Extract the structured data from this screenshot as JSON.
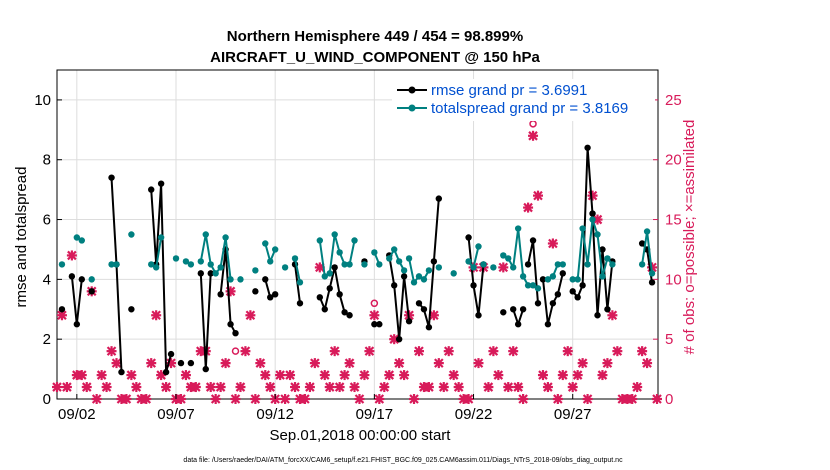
{
  "chart_data": {
    "type": "line",
    "title": "Northern Hemisphere 449 / 454 = 98.899%",
    "subtitle": "AIRCRAFT_U_WIND_COMPONENT @ 150 hPa",
    "xlabel": "Sep.01,2018 00:00:00 start",
    "ylabel": "rmse and totalspread",
    "y2label": "# of obs: o=possible; ×=assimilated",
    "footnote": "data file: /Users/raeder/DAI/ATM_forcXX/CAM6_setup/f.e21.FHIST_BGC.f09_025.CAM6assim.011/Diags_NTrS_2018-09/obs_diag_output.nc",
    "xlim": [
      1,
      31.3
    ],
    "ylim": [
      0,
      11
    ],
    "y2lim": [
      0,
      27.5
    ],
    "x_ticks": [
      {
        "x": 2,
        "label": "09/02"
      },
      {
        "x": 7,
        "label": "09/07"
      },
      {
        "x": 12,
        "label": "09/12"
      },
      {
        "x": 17,
        "label": "09/17"
      },
      {
        "x": 22,
        "label": "09/22"
      },
      {
        "x": 27,
        "label": "09/27"
      }
    ],
    "y_ticks": [
      0,
      2,
      4,
      6,
      8,
      10
    ],
    "y2_ticks": [
      0,
      5,
      10,
      15,
      20,
      25
    ],
    "legend": [
      "rmse grand pr = 3.6991",
      "totalspread grand pr = 3.8169"
    ],
    "colors": {
      "rmse": "#000000",
      "spread": "#008080",
      "obs": "#d81b5a",
      "legend_text": "#0050d0",
      "grid": "#dddddd"
    },
    "series": [
      {
        "name": "rmse",
        "points": [
          [
            [
              1.25,
              3.0
            ]
          ],
          [
            [
              1.75,
              4.1
            ],
            [
              2.0,
              2.5
            ],
            [
              2.25,
              4.0
            ]
          ],
          [
            [
              2.75,
              3.6
            ]
          ],
          [
            [
              3.75,
              7.4
            ],
            [
              4.0,
              4.5
            ],
            [
              4.25,
              0.9
            ]
          ],
          [
            [
              4.75,
              3.0
            ]
          ],
          [
            [
              5.75,
              7.0
            ],
            [
              6.0,
              4.5
            ],
            [
              6.25,
              7.2
            ],
            [
              6.5,
              0.9
            ],
            [
              6.75,
              1.5
            ]
          ],
          [
            [
              7.25,
              1.2
            ]
          ],
          [
            [
              7.75,
              1.2
            ]
          ],
          [
            [
              8.25,
              4.2
            ],
            [
              8.5,
              1.0
            ],
            [
              8.75,
              4.2
            ]
          ],
          [
            [
              9.25,
              3.5
            ],
            [
              9.5,
              5.0
            ],
            [
              9.75,
              2.5
            ],
            [
              10.0,
              2.2
            ]
          ],
          [
            [
              11.0,
              3.6
            ]
          ],
          [
            [
              11.5,
              4.0
            ],
            [
              11.75,
              3.4
            ],
            [
              12.0,
              3.5
            ]
          ],
          [
            [
              13.0,
              4.5
            ],
            [
              13.25,
              3.2
            ]
          ],
          [
            [
              14.25,
              3.4
            ],
            [
              14.5,
              3.0
            ],
            [
              14.75,
              3.7
            ],
            [
              15.0,
              4.4
            ],
            [
              15.25,
              3.5
            ],
            [
              15.5,
              2.9
            ],
            [
              15.75,
              2.8
            ]
          ],
          [
            [
              16.5,
              4.6
            ]
          ],
          [
            [
              17.0,
              2.5
            ],
            [
              17.25,
              2.5
            ]
          ],
          [
            [
              17.75,
              4.8
            ],
            [
              18.0,
              3.8
            ],
            [
              18.25,
              2.0
            ],
            [
              18.5,
              4.1
            ],
            [
              18.75,
              2.6
            ]
          ],
          [
            [
              19.25,
              3.2
            ],
            [
              19.5,
              3.0
            ],
            [
              19.75,
              2.4
            ],
            [
              20.0,
              4.6
            ],
            [
              20.25,
              6.7
            ]
          ],
          [
            [
              21.75,
              5.4
            ],
            [
              22.0,
              3.8
            ],
            [
              22.25,
              2.8
            ],
            [
              22.5,
              4.5
            ]
          ],
          [
            [
              23.5,
              2.9
            ]
          ],
          [
            [
              24.0,
              3.0
            ],
            [
              24.25,
              2.5
            ],
            [
              24.5,
              3.0
            ]
          ],
          [
            [
              24.75,
              4.5
            ],
            [
              25.0,
              5.3
            ],
            [
              25.25,
              3.2
            ]
          ],
          [
            [
              25.5,
              4.0
            ],
            [
              25.75,
              2.5
            ],
            [
              26.0,
              3.2
            ],
            [
              26.25,
              3.5
            ],
            [
              26.5,
              4.2
            ]
          ],
          [
            [
              27.0,
              3.6
            ],
            [
              27.25,
              3.4
            ],
            [
              27.5,
              3.8
            ],
            [
              27.75,
              8.4
            ],
            [
              28.0,
              6.2
            ],
            [
              28.25,
              2.8
            ],
            [
              28.5,
              5.0
            ],
            [
              28.75,
              3.0
            ],
            [
              29.0,
              4.6
            ]
          ],
          [
            [
              30.5,
              5.2
            ],
            [
              30.75,
              5.0
            ],
            [
              31.0,
              3.9
            ]
          ]
        ]
      },
      {
        "name": "totalspread",
        "points": [
          [
            [
              1.25,
              4.5
            ]
          ],
          [
            [
              2.0,
              5.4
            ],
            [
              2.25,
              5.3
            ]
          ],
          [
            [
              2.75,
              4.0
            ]
          ],
          [
            [
              3.75,
              4.5
            ],
            [
              4.0,
              4.5
            ]
          ],
          [
            [
              4.75,
              5.5
            ]
          ],
          [
            [
              5.75,
              4.5
            ],
            [
              6.0,
              4.4
            ],
            [
              6.25,
              5.4
            ]
          ],
          [
            [
              7.0,
              4.7
            ]
          ],
          [
            [
              7.5,
              4.6
            ],
            [
              7.75,
              4.5
            ]
          ],
          [
            [
              8.25,
              4.6
            ],
            [
              8.5,
              5.5
            ],
            [
              8.75,
              4.5
            ],
            [
              9.0,
              4.2
            ],
            [
              9.25,
              4.4
            ],
            [
              9.5,
              5.4
            ],
            [
              9.75,
              4.0
            ]
          ],
          [
            [
              10.25,
              4.0
            ]
          ],
          [
            [
              11.0,
              4.3
            ]
          ],
          [
            [
              11.5,
              5.2
            ],
            [
              11.75,
              4.6
            ],
            [
              12.0,
              5.0
            ]
          ],
          [
            [
              12.5,
              4.4
            ]
          ],
          [
            [
              13.0,
              4.7
            ],
            [
              13.25,
              3.9
            ]
          ],
          [
            [
              14.25,
              5.3
            ],
            [
              14.5,
              4.1
            ],
            [
              14.75,
              4.2
            ],
            [
              15.0,
              5.5
            ],
            [
              15.25,
              4.9
            ],
            [
              15.5,
              4.5
            ],
            [
              15.75,
              4.5
            ],
            [
              16.0,
              5.3
            ]
          ],
          [
            [
              16.5,
              4.5
            ]
          ],
          [
            [
              17.0,
              4.9
            ],
            [
              17.25,
              4.5
            ]
          ],
          [
            [
              17.75,
              4.7
            ],
            [
              18.0,
              5.0
            ],
            [
              18.25,
              4.6
            ],
            [
              18.5,
              4.3
            ]
          ],
          [
            [
              18.75,
              4.7
            ],
            [
              19.0,
              3.9
            ],
            [
              19.25,
              4.1
            ],
            [
              19.5,
              4.0
            ],
            [
              19.75,
              4.3
            ]
          ],
          [
            [
              20.25,
              4.4
            ]
          ],
          [
            [
              21.0,
              4.2
            ]
          ],
          [
            [
              21.75,
              4.6
            ],
            [
              22.0,
              4.4
            ],
            [
              22.25,
              5.1
            ]
          ],
          [
            [
              22.5,
              4.5
            ]
          ],
          [
            [
              23.0,
              4.4
            ]
          ],
          [
            [
              23.5,
              4.8
            ],
            [
              23.75,
              4.7
            ],
            [
              24.0,
              4.4
            ],
            [
              24.25,
              5.7
            ],
            [
              24.5,
              4.1
            ],
            [
              24.75,
              3.8
            ],
            [
              25.0,
              3.8
            ],
            [
              25.25,
              3.7
            ]
          ],
          [
            [
              25.75,
              4.0
            ],
            [
              26.0,
              4.1
            ],
            [
              26.25,
              4.5
            ],
            [
              26.5,
              4.5
            ]
          ],
          [
            [
              27.0,
              4.0
            ],
            [
              27.25,
              4.0
            ],
            [
              27.5,
              5.7
            ],
            [
              27.75,
              4.5
            ],
            [
              28.0,
              6.0
            ],
            [
              28.25,
              5.5
            ],
            [
              28.5,
              4.1
            ],
            [
              28.75,
              4.7
            ],
            [
              29.0,
              4.5
            ]
          ],
          [
            [
              30.5,
              4.5
            ],
            [
              30.75,
              5.6
            ],
            [
              31.0,
              4.2
            ]
          ]
        ]
      }
    ],
    "obs_assimilated": [
      [
        1.0,
        1
      ],
      [
        1.25,
        7
      ],
      [
        1.5,
        1
      ],
      [
        1.75,
        12
      ],
      [
        2.0,
        2
      ],
      [
        2.25,
        2
      ],
      [
        2.5,
        1
      ],
      [
        2.75,
        9
      ],
      [
        3.0,
        0
      ],
      [
        3.25,
        2
      ],
      [
        3.5,
        1
      ],
      [
        3.75,
        4
      ],
      [
        4.0,
        3
      ],
      [
        4.25,
        0
      ],
      [
        4.5,
        0
      ],
      [
        4.75,
        2
      ],
      [
        5.0,
        1
      ],
      [
        5.25,
        0
      ],
      [
        5.5,
        0
      ],
      [
        5.75,
        3
      ],
      [
        6.0,
        7
      ],
      [
        6.25,
        2
      ],
      [
        6.5,
        1
      ],
      [
        6.75,
        3
      ],
      [
        7.0,
        0
      ],
      [
        7.25,
        0
      ],
      [
        7.5,
        2
      ],
      [
        7.75,
        1
      ],
      [
        8.0,
        1
      ],
      [
        8.25,
        4
      ],
      [
        8.5,
        4
      ],
      [
        8.75,
        1
      ],
      [
        9.0,
        0
      ],
      [
        9.25,
        1
      ],
      [
        9.5,
        3
      ],
      [
        9.75,
        9
      ],
      [
        10.0,
        0
      ],
      [
        10.25,
        1
      ],
      [
        10.5,
        4
      ],
      [
        10.75,
        7
      ],
      [
        11.0,
        0
      ],
      [
        11.25,
        3
      ],
      [
        11.5,
        2
      ],
      [
        11.75,
        1
      ],
      [
        12.0,
        0
      ],
      [
        12.25,
        2
      ],
      [
        12.5,
        0
      ],
      [
        12.75,
        2
      ],
      [
        13.0,
        1
      ],
      [
        13.25,
        0
      ],
      [
        13.5,
        0
      ],
      [
        13.75,
        1
      ],
      [
        14.0,
        3
      ],
      [
        14.25,
        11
      ],
      [
        14.5,
        2
      ],
      [
        14.75,
        1
      ],
      [
        15.0,
        4
      ],
      [
        15.25,
        1
      ],
      [
        15.5,
        2
      ],
      [
        15.75,
        3
      ],
      [
        16.0,
        1
      ],
      [
        16.25,
        0
      ],
      [
        16.5,
        2
      ],
      [
        16.75,
        4
      ],
      [
        17.0,
        7
      ],
      [
        17.25,
        0
      ],
      [
        17.5,
        1
      ],
      [
        17.75,
        2
      ],
      [
        18.0,
        5
      ],
      [
        18.25,
        3
      ],
      [
        18.5,
        2
      ],
      [
        18.75,
        7
      ],
      [
        19.0,
        0
      ],
      [
        19.25,
        4
      ],
      [
        19.5,
        1
      ],
      [
        19.75,
        1
      ],
      [
        20.0,
        7
      ],
      [
        20.25,
        3
      ],
      [
        20.5,
        1
      ],
      [
        20.75,
        4
      ],
      [
        21.0,
        2
      ],
      [
        21.25,
        1
      ],
      [
        21.5,
        0
      ],
      [
        21.75,
        0
      ],
      [
        22.0,
        11
      ],
      [
        22.25,
        3
      ],
      [
        22.5,
        11
      ],
      [
        22.75,
        1
      ],
      [
        23.0,
        4
      ],
      [
        23.25,
        2
      ],
      [
        23.5,
        11
      ],
      [
        23.75,
        1
      ],
      [
        24.0,
        4
      ],
      [
        24.25,
        1
      ],
      [
        24.5,
        0
      ],
      [
        24.75,
        16
      ],
      [
        25.0,
        22
      ],
      [
        25.25,
        17
      ],
      [
        25.5,
        2
      ],
      [
        25.75,
        1
      ],
      [
        26.0,
        13
      ],
      [
        26.25,
        0
      ],
      [
        26.5,
        2
      ],
      [
        26.75,
        4
      ],
      [
        27.0,
        1
      ],
      [
        27.25,
        2
      ],
      [
        27.5,
        3
      ],
      [
        27.75,
        0
      ],
      [
        28.0,
        17
      ],
      [
        28.25,
        15
      ],
      [
        28.5,
        2
      ],
      [
        28.75,
        3
      ],
      [
        29.0,
        7
      ],
      [
        29.25,
        4
      ],
      [
        29.5,
        0
      ],
      [
        29.75,
        0
      ],
      [
        30.0,
        0
      ],
      [
        30.25,
        1
      ],
      [
        30.5,
        4
      ],
      [
        30.75,
        3
      ],
      [
        31.0,
        11
      ],
      [
        31.25,
        0
      ]
    ],
    "obs_possible": [
      [
        10.0,
        4
      ],
      [
        17.0,
        8
      ],
      [
        25.0,
        23
      ]
    ]
  }
}
